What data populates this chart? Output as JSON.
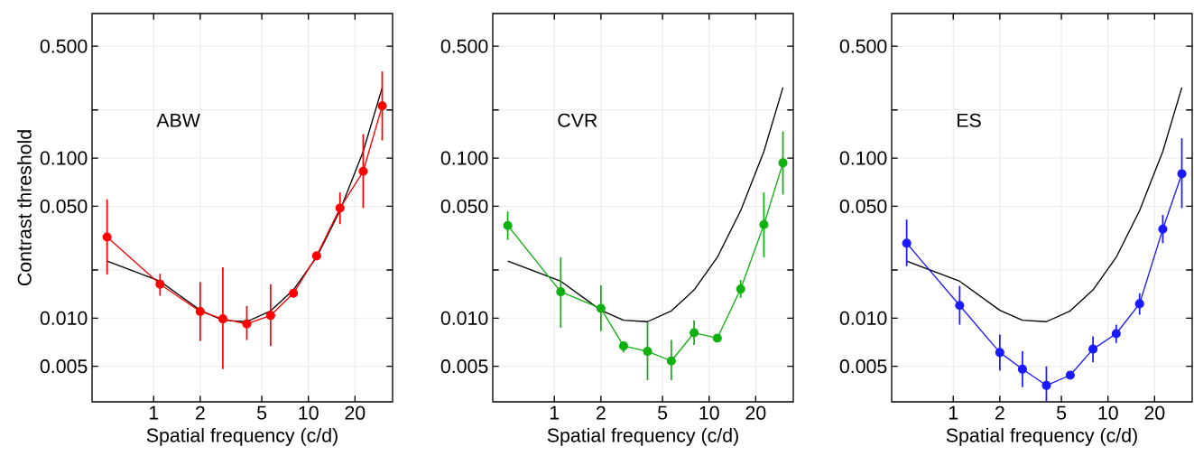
{
  "chart_data": [
    {
      "type": "line",
      "title": "ABW",
      "xlabel": "Spatial frequency (c/d)",
      "ylabel": "Contrast threshold",
      "log": "xy",
      "grid": true,
      "xlim": [
        0.4,
        35
      ],
      "ylim": [
        0.003,
        0.8
      ],
      "xticks": [
        1,
        2,
        5,
        10,
        20
      ],
      "yticks": [
        {
          "value": 0.005,
          "label": "0.005"
        },
        {
          "value": 0.01,
          "label": "0.010"
        },
        {
          "value": 0.02,
          "label": null
        },
        {
          "value": 0.05,
          "label": "0.050"
        },
        {
          "value": 0.1,
          "label": "0.100"
        },
        {
          "value": 0.2,
          "label": null
        },
        {
          "value": 0.5,
          "label": "0.500"
        }
      ],
      "series": [
        {
          "color": "#000000",
          "marker": "none",
          "x": [
            0.5,
            1.1,
            2,
            2.8,
            4,
            5.7,
            8,
            11.3,
            16,
            22.6,
            30
          ],
          "values": [
            0.0227,
            0.017,
            0.0112,
            0.0097,
            0.0095,
            0.0111,
            0.015,
            0.024,
            0.047,
            0.11,
            0.276
          ]
        },
        {
          "color": "#ff0000",
          "marker": "circle",
          "x": [
            0.5,
            1.1,
            2,
            2.8,
            4,
            5.7,
            8,
            11.3,
            16,
            22.6,
            30
          ],
          "values": [
            0.0321,
            0.0163,
            0.011,
            0.0099,
            0.0092,
            0.0104,
            0.0143,
            0.0245,
            0.0487,
            0.0826,
            0.212
          ],
          "errors": [
            [
              0.0187,
              0.0552
            ],
            [
              0.0138,
              0.0189
            ],
            [
              0.0072,
              0.0168
            ],
            [
              0.0048,
              0.0208
            ],
            [
              0.0073,
              0.0119
            ],
            [
              0.0067,
              0.0163
            ],
            null,
            null,
            [
              0.0387,
              0.061
            ],
            [
              0.0487,
              0.141
            ],
            [
              0.129,
              0.348
            ]
          ]
        }
      ]
    },
    {
      "type": "line",
      "title": "CVR",
      "xlabel": "Spatial frequency (c/d)",
      "log": "xy",
      "grid": true,
      "xlim": [
        0.4,
        35
      ],
      "ylim": [
        0.003,
        0.8
      ],
      "xticks": [
        1,
        2,
        5,
        10,
        20
      ],
      "yticks": [
        {
          "value": 0.005,
          "label": "0.005"
        },
        {
          "value": 0.01,
          "label": "0.010"
        },
        {
          "value": 0.02,
          "label": null
        },
        {
          "value": 0.05,
          "label": "0.050"
        },
        {
          "value": 0.1,
          "label": "0.100"
        },
        {
          "value": 0.2,
          "label": null
        },
        {
          "value": 0.5,
          "label": "0.500"
        }
      ],
      "series": [
        {
          "color": "#000000",
          "marker": "none",
          "x": [
            0.5,
            1.1,
            2,
            2.8,
            4,
            5.7,
            8,
            11.3,
            16,
            22.6,
            30
          ],
          "values": [
            0.0227,
            0.017,
            0.0112,
            0.0097,
            0.0095,
            0.0111,
            0.015,
            0.024,
            0.047,
            0.11,
            0.276
          ]
        },
        {
          "color": "#11b011",
          "marker": "circle",
          "x": [
            0.5,
            1.1,
            2,
            2.8,
            4,
            5.7,
            8,
            11.3,
            16,
            22.6,
            30
          ],
          "values": [
            0.0379,
            0.0146,
            0.0115,
            0.0067,
            0.0062,
            0.0054,
            0.0081,
            0.0075,
            0.0152,
            0.0384,
            0.0933
          ],
          "errors": [
            [
              0.0309,
              0.0464
            ],
            [
              0.0087,
              0.024
            ],
            [
              0.0083,
              0.016
            ],
            [
              0.0061,
              0.0071
            ],
            [
              0.0041,
              0.0094
            ],
            [
              0.0041,
              0.0073
            ],
            [
              0.0068,
              0.0097
            ],
            null,
            [
              0.0134,
              0.0173
            ],
            [
              0.024,
              0.061
            ],
            [
              0.0592,
              0.147
            ]
          ]
        }
      ]
    },
    {
      "type": "line",
      "title": "ES",
      "xlabel": "Spatial frequency (c/d)",
      "log": "xy",
      "grid": true,
      "xlim": [
        0.4,
        35
      ],
      "ylim": [
        0.003,
        0.8
      ],
      "xticks": [
        1,
        2,
        5,
        10,
        20
      ],
      "yticks": [
        {
          "value": 0.005,
          "label": "0.005"
        },
        {
          "value": 0.01,
          "label": "0.010"
        },
        {
          "value": 0.02,
          "label": null
        },
        {
          "value": 0.05,
          "label": "0.050"
        },
        {
          "value": 0.1,
          "label": "0.100"
        },
        {
          "value": 0.2,
          "label": null
        },
        {
          "value": 0.5,
          "label": "0.500"
        }
      ],
      "series": [
        {
          "color": "#000000",
          "marker": "none",
          "x": [
            0.5,
            1.1,
            2,
            2.8,
            4,
            5.7,
            8,
            11.3,
            16,
            22.6,
            30
          ],
          "values": [
            0.0227,
            0.017,
            0.0112,
            0.0097,
            0.0095,
            0.0111,
            0.015,
            0.024,
            0.047,
            0.11,
            0.276
          ]
        },
        {
          "color": "#1a1aff",
          "marker": "circle",
          "x": [
            0.5,
            1.1,
            2,
            2.8,
            4,
            5.7,
            8,
            11.3,
            16,
            22.6,
            30
          ],
          "values": [
            0.0294,
            0.012,
            0.0061,
            0.0048,
            0.0038,
            0.0044,
            0.0064,
            0.008,
            0.0123,
            0.036,
            0.0798
          ],
          "errors": [
            [
              0.0211,
              0.0413
            ],
            [
              0.0091,
              0.0159
            ],
            [
              0.0047,
              0.0079
            ],
            [
              0.0037,
              0.0062
            ],
            [
              0.003,
              0.005
            ],
            null,
            [
              0.0053,
              0.0077
            ],
            [
              0.007,
              0.0091
            ],
            [
              0.0105,
              0.0143
            ],
            [
              0.0294,
              0.0441
            ],
            [
              0.0487,
              0.133
            ]
          ]
        }
      ]
    }
  ]
}
